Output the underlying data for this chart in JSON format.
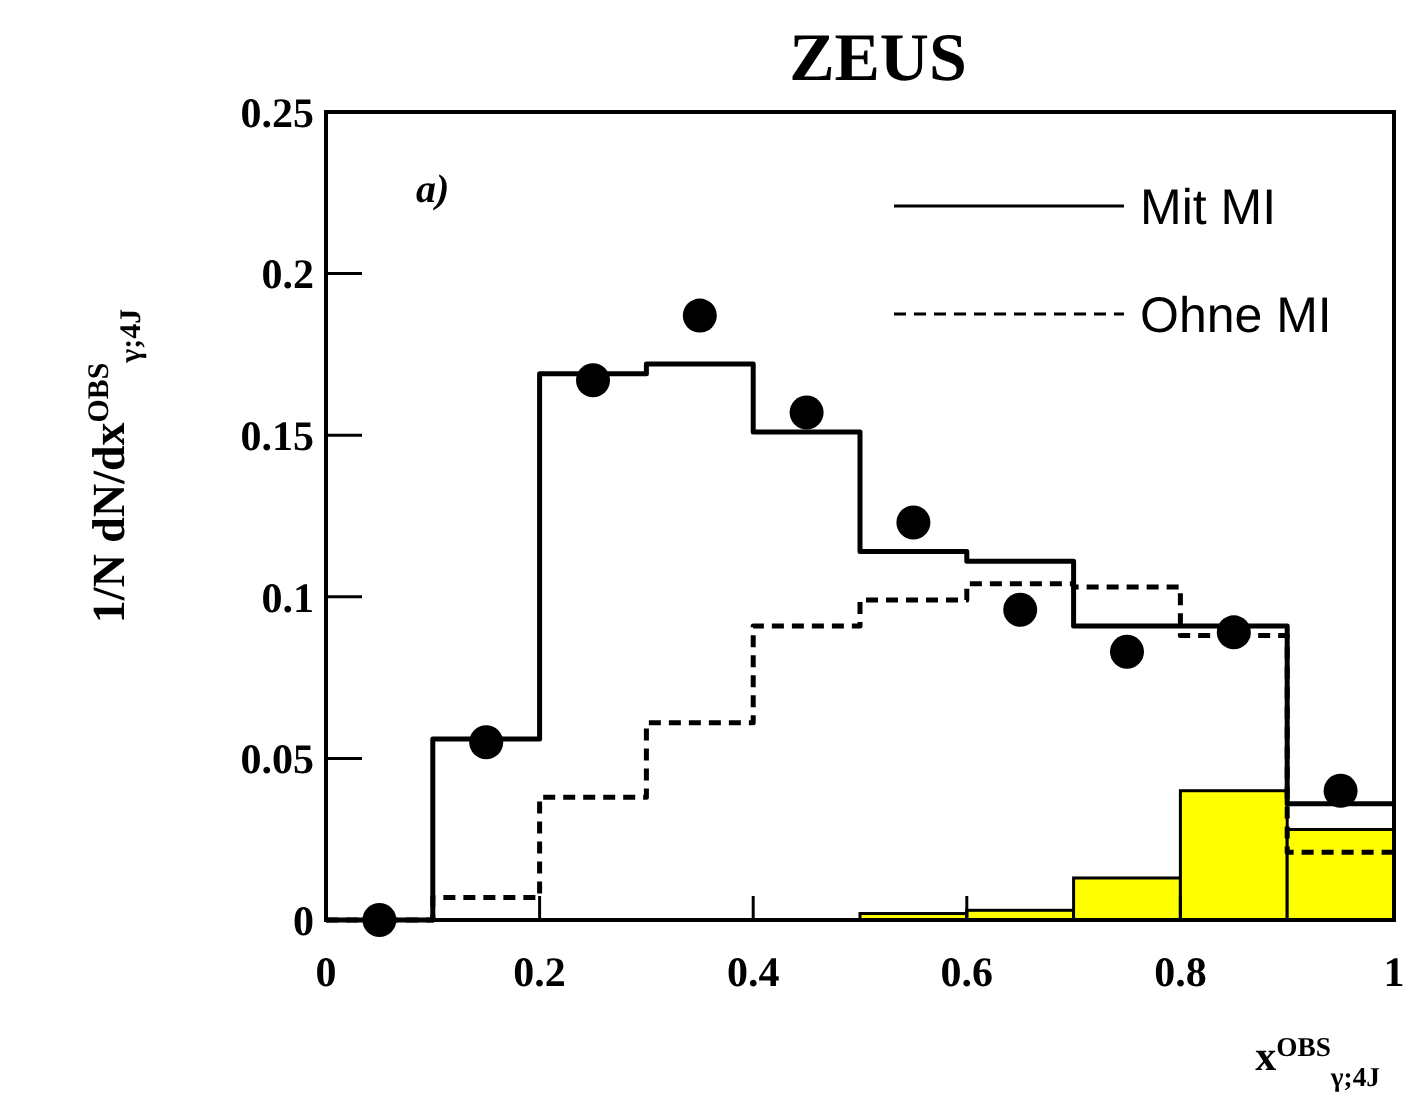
{
  "chart_data": {
    "type": "histogram",
    "title": "ZEUS",
    "xlabel": "x$^{OBS}$$_{γ;4J}$",
    "ylabel": "1/N dN/dx$^{OBS}$$_{γ;4J}$",
    "annotations": [
      "a)"
    ],
    "bins": [
      0.5,
      0.6,
      0.7,
      0.8,
      0.9,
      1
    ],
    "series": [
      {
        "type": "histogram",
        "color": "#ffff00",
        "values": [
          0.002,
          0.003,
          0.013,
          0.04,
          0.028
        ]
      },
      {
        "type": "step",
        "name": "Mit MI",
        "color": "#000000",
        "line_style": "solid",
        "x": [
          0,
          0.1,
          0.2,
          0.3,
          0.4,
          0.5,
          0.6,
          0.7,
          0.8,
          0.9,
          1
        ],
        "values": [
          0,
          0.056,
          0.169,
          0.172,
          0.151,
          0.114,
          0.111,
          0.091,
          0.091,
          0.036,
          0.036
        ]
      },
      {
        "type": "step",
        "name": "Ohne MI",
        "color": "#000000",
        "line_style": "dashed",
        "x": [
          0,
          0.1,
          0.2,
          0.3,
          0.4,
          0.5,
          0.6,
          0.7,
          0.8,
          0.9,
          1
        ],
        "values": [
          0,
          0.007,
          0.038,
          0.061,
          0.091,
          0.099,
          0.104,
          0.103,
          0.088,
          0.021,
          0.021
        ]
      },
      {
        "type": "scatter",
        "color": "#000000",
        "marker": "circle",
        "x": [
          0.05,
          0.15,
          0.25,
          0.35,
          0.45,
          0.55,
          0.65,
          0.75,
          0.85,
          0.95
        ],
        "values": [
          0,
          0.055,
          0.167,
          0.187,
          0.157,
          0.123,
          0.096,
          0.083,
          0.089,
          0.04
        ]
      }
    ],
    "xlim": [
      0,
      1
    ],
    "xticks": [
      0,
      0.2,
      0.4,
      0.6,
      0.8,
      1
    ],
    "ylim": [
      0,
      0.25
    ],
    "yticks": [
      0,
      0.05,
      0.1,
      0.15,
      0.2,
      0.25
    ],
    "legend": "top right"
  }
}
